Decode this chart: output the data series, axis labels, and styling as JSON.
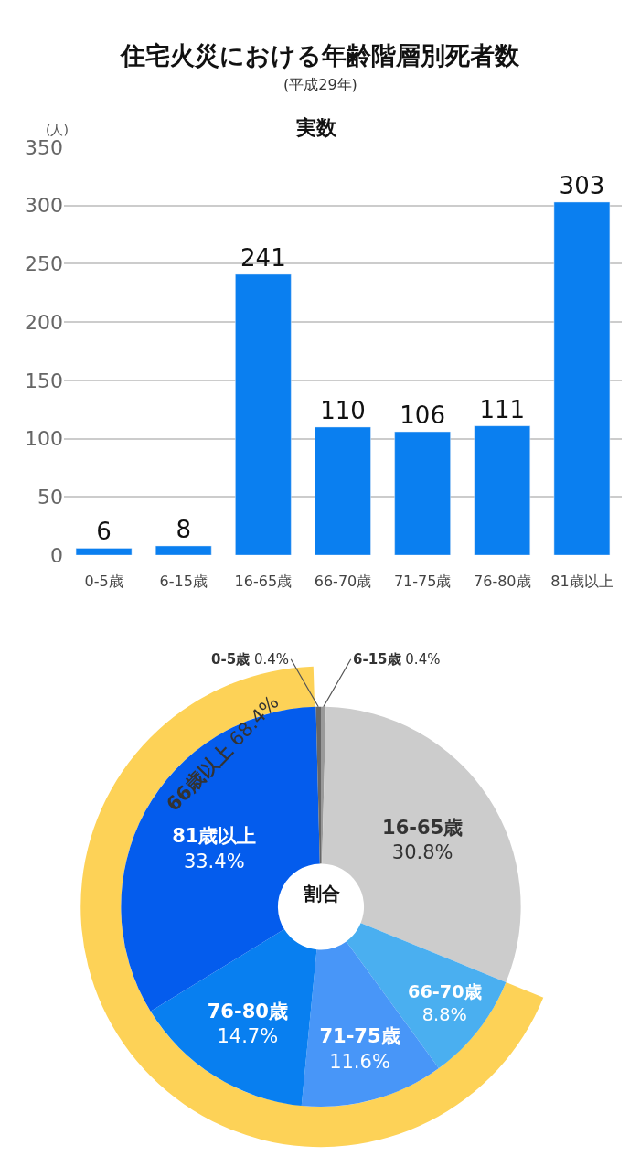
{
  "chart_data": [
    {
      "type": "bar",
      "title": "住宅火災における年齢階層別死者数",
      "subtitle": "(平成29年)",
      "annotations": [
        "実数"
      ],
      "ylabel": "(人)",
      "categories": [
        "0-5歳",
        "6-15歳",
        "16-65歳",
        "66-70歳",
        "71-75歳",
        "76-80歳",
        "81歳以上"
      ],
      "values": [
        6,
        8,
        241,
        110,
        106,
        111,
        303
      ],
      "color": "#0a7ff0",
      "ylim": [
        0,
        350
      ],
      "yticks": [
        0,
        50,
        100,
        150,
        200,
        250,
        300,
        350
      ],
      "grid": "y",
      "data_labels": true
    },
    {
      "type": "donut",
      "title": "割合",
      "categories": [
        "6-15歳",
        "16-65歳",
        "66-70歳",
        "71-75歳",
        "76-80歳",
        "81歳以上",
        "0-5歳"
      ],
      "series": [
        {
          "values": [
            0.4,
            30.8,
            8.8,
            11.6,
            14.7,
            33.4,
            0.4
          ],
          "colors": [
            "#999999",
            "#cccccc",
            "#4aaff0",
            "#4896f8",
            "#087ff0",
            "#045ced",
            "#666666"
          ],
          "value_labels": [
            "0.4%",
            "30.8%",
            "8.8%",
            "11.6%",
            "14.7%",
            "33.4%",
            "0.4%"
          ]
        },
        {
          "name": "66歳以上",
          "color": "#fdd257",
          "values": [
            null,
            null,
            68.4,
            null,
            null,
            null,
            null
          ],
          "value_labels": [
            null,
            null,
            "68.4%",
            null,
            null,
            null,
            null
          ]
        }
      ]
    }
  ]
}
